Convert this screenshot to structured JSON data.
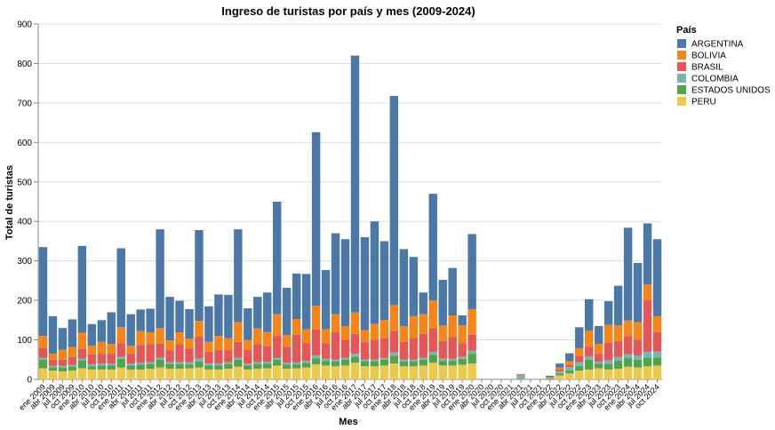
{
  "chart_data": {
    "type": "bar",
    "stacked": true,
    "title": "Ingreso de turistas por país y mes (2009-2024)",
    "xlabel": "Mes",
    "ylabel": "Total de turistas",
    "ylim": [
      0,
      900
    ],
    "yticks": [
      0,
      100,
      200,
      300,
      400,
      500,
      600,
      700,
      800,
      900
    ],
    "grid": true,
    "legend": {
      "title": "País",
      "position": "right"
    },
    "categories": [
      "ene 2009",
      "abr 2009",
      "jul 2009",
      "oct 2009",
      "ene 2010",
      "abr 2010",
      "jul 2010",
      "oct 2010",
      "ene 2011",
      "abr 2011",
      "jul 2011",
      "oct 2011",
      "ene 2012",
      "abr 2012",
      "jul 2012",
      "oct 2012",
      "ene 2013",
      "abr 2013",
      "jul 2013",
      "oct 2013",
      "ene 2014",
      "abr 2014",
      "jul 2014",
      "oct 2014",
      "ene 2015",
      "abr 2015",
      "jul 2015",
      "oct 2015",
      "ene 2016",
      "abr 2016",
      "jul 2016",
      "oct 2016",
      "ene 2017",
      "abr 2017",
      "jul 2017",
      "oct 2017",
      "ene 2018",
      "abr 2018",
      "jul 2018",
      "oct 2018",
      "ene 2019",
      "abr 2019",
      "jul 2019",
      "oct 2019",
      "ene 2020",
      "abr 2020",
      "jul 2020",
      "oct 2020",
      "ene 2021",
      "abr 2021",
      "jul 2021",
      "oct 2021",
      "ene 2022",
      "abr 2022",
      "jul 2022",
      "oct 2022",
      "ene 2023",
      "abr 2023",
      "jul 2023",
      "oct 2023",
      "ene 2024",
      "abr 2024",
      "jul 2024",
      "oct 2024"
    ],
    "series": [
      {
        "name": "PERU",
        "color": "#ECC94B",
        "values": [
          28,
          22,
          20,
          22,
          28,
          25,
          25,
          25,
          30,
          25,
          25,
          27,
          30,
          27,
          27,
          28,
          30,
          25,
          25,
          27,
          32,
          25,
          27,
          28,
          35,
          27,
          28,
          30,
          38,
          35,
          33,
          35,
          42,
          33,
          33,
          35,
          40,
          33,
          33,
          35,
          42,
          35,
          35,
          37,
          40,
          0,
          0,
          0,
          0,
          0,
          0,
          0,
          0,
          10,
          15,
          22,
          25,
          28,
          25,
          27,
          32,
          30,
          33,
          35
        ]
      },
      {
        "name": "ESTADOS UNIDOS",
        "color": "#54A24B",
        "values": [
          22,
          8,
          10,
          10,
          20,
          8,
          10,
          10,
          22,
          10,
          12,
          12,
          20,
          12,
          12,
          10,
          15,
          10,
          10,
          12,
          18,
          10,
          12,
          12,
          15,
          10,
          10,
          12,
          15,
          12,
          12,
          15,
          15,
          12,
          12,
          15,
          20,
          12,
          12,
          15,
          20,
          12,
          12,
          15,
          25,
          0,
          0,
          0,
          0,
          0,
          0,
          0,
          0,
          5,
          8,
          12,
          25,
          12,
          15,
          20,
          22,
          20,
          22,
          20
        ]
      },
      {
        "name": "COLOMBIA",
        "color": "#72B7B2",
        "values": [
          5,
          5,
          5,
          5,
          5,
          5,
          5,
          5,
          5,
          5,
          5,
          5,
          5,
          5,
          5,
          5,
          8,
          5,
          5,
          5,
          5,
          5,
          5,
          5,
          5,
          5,
          5,
          5,
          8,
          5,
          5,
          5,
          8,
          5,
          5,
          5,
          8,
          5,
          5,
          5,
          8,
          5,
          5,
          5,
          8,
          0,
          0,
          0,
          0,
          8,
          0,
          0,
          3,
          5,
          8,
          10,
          8,
          5,
          8,
          10,
          10,
          10,
          15,
          15
        ]
      },
      {
        "name": "BRASIL",
        "color": "#E45756",
        "values": [
          25,
          15,
          15,
          20,
          25,
          25,
          25,
          25,
          35,
          25,
          45,
          45,
          35,
          30,
          45,
          35,
          55,
          30,
          35,
          30,
          40,
          35,
          45,
          40,
          55,
          40,
          70,
          45,
          65,
          40,
          70,
          45,
          50,
          45,
          50,
          50,
          55,
          45,
          55,
          60,
          60,
          45,
          55,
          35,
          40,
          0,
          0,
          0,
          0,
          0,
          0,
          0,
          0,
          5,
          5,
          15,
          25,
          20,
          45,
          40,
          45,
          40,
          130,
          50
        ]
      },
      {
        "name": "BOLIVIA",
        "color": "#F58518",
        "values": [
          30,
          15,
          25,
          25,
          40,
          22,
          30,
          25,
          40,
          20,
          35,
          30,
          40,
          25,
          30,
          25,
          40,
          25,
          35,
          30,
          50,
          25,
          40,
          35,
          55,
          30,
          40,
          35,
          60,
          35,
          45,
          35,
          55,
          30,
          40,
          45,
          65,
          40,
          55,
          50,
          70,
          40,
          55,
          45,
          65,
          0,
          0,
          0,
          0,
          3,
          0,
          0,
          3,
          5,
          10,
          20,
          40,
          25,
          45,
          40,
          40,
          45,
          40,
          40
        ]
      },
      {
        "name": "ARGENTINA",
        "color": "#4C78A8",
        "values": [
          225,
          95,
          55,
          70,
          220,
          55,
          55,
          80,
          200,
          80,
          55,
          60,
          250,
          110,
          80,
          75,
          230,
          90,
          105,
          110,
          235,
          80,
          80,
          100,
          285,
          120,
          115,
          140,
          440,
          150,
          205,
          220,
          650,
          235,
          260,
          200,
          530,
          195,
          150,
          55,
          270,
          115,
          120,
          25,
          190,
          0,
          0,
          0,
          0,
          2,
          0,
          0,
          3,
          10,
          20,
          53,
          80,
          45,
          60,
          100,
          235,
          150,
          155,
          195
        ]
      }
    ]
  }
}
